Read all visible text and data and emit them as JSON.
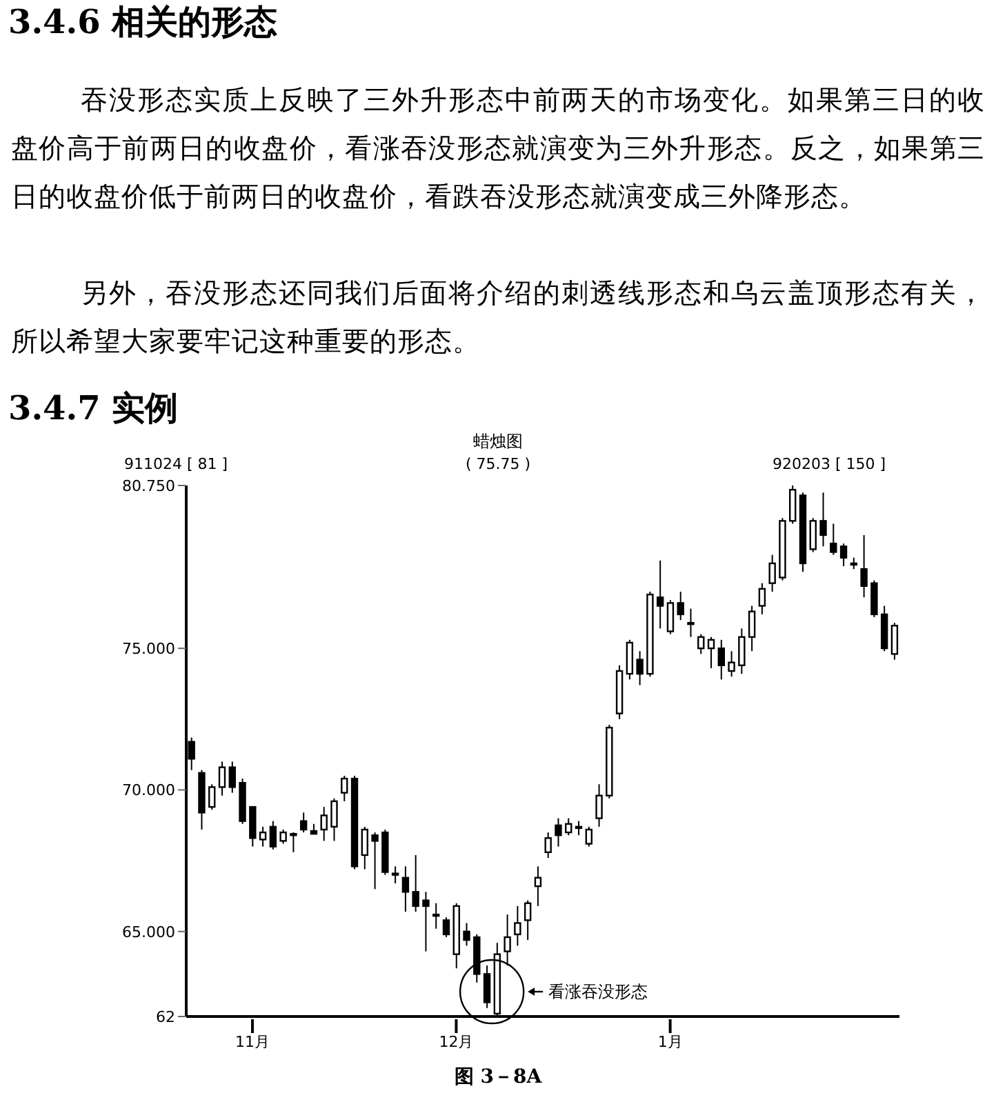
{
  "chart_data": {
    "type": "candlestick",
    "title": "蜡烛图",
    "annotations": [
      "3.4.6 相关的形态",
      "吞没形态实质上反映了三外升形态中前两天的市场变化。如果第三日的收盘价高于前两日的收盘价，看涨吞没形态就演变为三外升形态。反之，如果第三日的收盘价低于前两日的收盘价，看跌吞没形态就演变成三外降形态。",
      "另外，吞没形态还同我们后面将介绍的刺透线形态和乌云盖顶形态有关，所以希望大家要牢记这种重要的形态。",
      "3.4.7 实例",
      "911024 [ 81 ]",
      "( 75.75 )",
      "920203 [ 150 ]",
      "看涨吞没形态",
      "图 3－8A"
    ],
    "categories": [
      null,
      null,
      null,
      null,
      null,
      null,
      "11月",
      null,
      null,
      null,
      null,
      null,
      null,
      null,
      null,
      null,
      null,
      null,
      null,
      null,
      null,
      null,
      null,
      null,
      null,
      null,
      "12月",
      null,
      null,
      null,
      null,
      null,
      null,
      null,
      null,
      null,
      null,
      null,
      null,
      null,
      null,
      null,
      null,
      null,
      null,
      null,
      null,
      "1月",
      null,
      null,
      null,
      null,
      null,
      null,
      null,
      null,
      null,
      null,
      null,
      null,
      null,
      null,
      null,
      null,
      null,
      null,
      null,
      null,
      null,
      null
    ],
    "ohlc": [
      [
        71.7,
        71.85,
        70.7,
        71.1
      ],
      [
        70.6,
        70.7,
        68.6,
        69.2
      ],
      [
        69.4,
        70.2,
        69.3,
        70.1
      ],
      [
        70.1,
        71.0,
        69.8,
        70.8
      ],
      [
        70.8,
        71.0,
        69.9,
        70.1
      ],
      [
        70.25,
        70.4,
        68.8,
        68.9
      ],
      [
        69.4,
        69.4,
        68.0,
        68.3
      ],
      [
        68.25,
        68.7,
        68.0,
        68.5
      ],
      [
        68.7,
        68.9,
        67.9,
        68.0
      ],
      [
        68.2,
        68.6,
        68.1,
        68.5
      ],
      [
        68.45,
        68.5,
        67.8,
        68.4
      ],
      [
        68.9,
        69.2,
        68.5,
        68.6
      ],
      [
        68.55,
        68.8,
        68.45,
        68.45
      ],
      [
        68.6,
        69.4,
        68.2,
        69.1
      ],
      [
        68.7,
        69.7,
        68.2,
        69.6
      ],
      [
        69.9,
        70.5,
        69.6,
        70.4
      ],
      [
        70.4,
        70.5,
        67.2,
        67.3
      ],
      [
        67.7,
        68.7,
        67.2,
        68.6
      ],
      [
        68.4,
        68.5,
        66.5,
        68.2
      ],
      [
        68.5,
        68.6,
        67.0,
        67.1
      ],
      [
        67.05,
        67.3,
        66.7,
        67.0
      ],
      [
        66.9,
        67.3,
        65.7,
        66.4
      ],
      [
        66.4,
        67.7,
        65.7,
        65.9
      ],
      [
        66.1,
        66.4,
        64.3,
        65.9
      ],
      [
        65.6,
        66.0,
        65.1,
        65.6
      ],
      [
        65.4,
        65.5,
        64.8,
        64.9
      ],
      [
        64.2,
        66.0,
        63.7,
        65.9
      ],
      [
        65.0,
        65.3,
        64.5,
        64.7
      ],
      [
        64.8,
        64.9,
        63.2,
        63.5
      ],
      [
        63.5,
        63.8,
        62.3,
        62.5
      ],
      [
        62.1,
        64.6,
        62.0,
        64.2
      ],
      [
        64.3,
        65.6,
        63.8,
        64.8
      ],
      [
        64.9,
        65.9,
        64.5,
        65.3
      ],
      [
        65.4,
        66.1,
        64.7,
        66.0
      ],
      [
        66.6,
        67.3,
        65.9,
        66.9
      ],
      [
        67.8,
        68.5,
        67.6,
        68.3
      ],
      [
        68.75,
        69.0,
        68.0,
        68.4
      ],
      [
        68.5,
        69.0,
        68.4,
        68.8
      ],
      [
        68.7,
        68.9,
        68.4,
        68.7
      ],
      [
        68.1,
        68.7,
        68.0,
        68.6
      ],
      [
        69.0,
        70.2,
        68.7,
        69.8
      ],
      [
        69.8,
        72.3,
        69.7,
        72.2
      ],
      [
        72.7,
        74.4,
        72.5,
        74.2
      ],
      [
        74.1,
        75.3,
        73.9,
        75.2
      ],
      [
        74.6,
        74.9,
        73.7,
        74.1
      ],
      [
        74.1,
        77.0,
        74.0,
        76.9
      ],
      [
        76.8,
        78.1,
        75.7,
        76.5
      ],
      [
        75.6,
        76.7,
        75.5,
        76.6
      ],
      [
        76.6,
        77.0,
        76.0,
        76.2
      ],
      [
        75.9,
        76.4,
        75.4,
        75.9
      ],
      [
        75.0,
        75.5,
        74.8,
        75.4
      ],
      [
        75.0,
        75.4,
        74.3,
        75.3
      ],
      [
        75.0,
        75.3,
        73.9,
        74.4
      ],
      [
        74.2,
        74.9,
        74.0,
        74.5
      ],
      [
        74.4,
        75.7,
        74.1,
        75.4
      ],
      [
        75.4,
        76.5,
        74.9,
        76.3
      ],
      [
        76.5,
        77.3,
        76.2,
        77.1
      ],
      [
        77.3,
        78.3,
        77.0,
        78.0
      ],
      [
        77.5,
        79.6,
        77.4,
        79.5
      ],
      [
        79.5,
        80.75,
        79.4,
        80.6
      ],
      [
        80.4,
        80.5,
        77.7,
        78.0
      ],
      [
        78.5,
        79.6,
        78.4,
        79.5
      ],
      [
        79.5,
        80.5,
        78.6,
        79.0
      ],
      [
        78.7,
        79.4,
        78.3,
        78.4
      ],
      [
        78.6,
        78.7,
        77.9,
        78.2
      ],
      [
        78.0,
        78.2,
        77.8,
        78.0
      ],
      [
        77.8,
        79.0,
        76.8,
        77.2
      ],
      [
        77.3,
        77.4,
        76.1,
        76.2
      ],
      [
        76.2,
        76.5,
        74.9,
        75.0
      ],
      [
        74.8,
        75.9,
        74.6,
        75.8
      ]
    ],
    "color": "#000000",
    "ylim": [
      62,
      80.75
    ],
    "yticks": [
      {
        "value": 62,
        "label": "62"
      },
      {
        "value": 65,
        "label": "65.000"
      },
      {
        "value": 70,
        "label": "70.000"
      },
      {
        "value": 75,
        "label": "75.000"
      },
      {
        "value": 80.75,
        "label": "80.750"
      }
    ],
    "grid": false,
    "legend": false
  }
}
